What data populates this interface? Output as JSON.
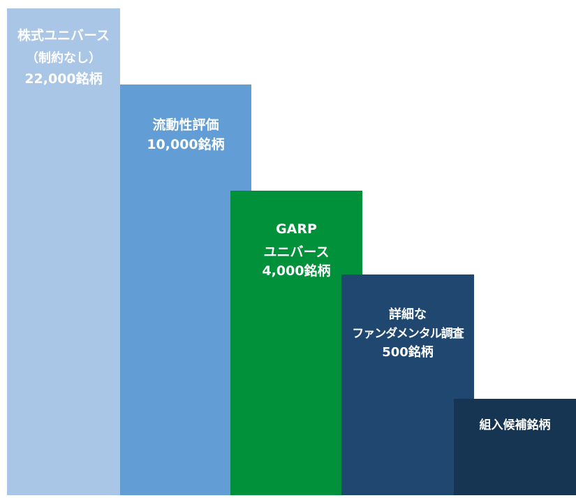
{
  "steps": [
    {
      "color": "#a9c6e6",
      "lines": [
        "株式ユニバース",
        "（制約なし）",
        "22,000銘柄"
      ]
    },
    {
      "color": "#639dd6",
      "lines": [
        "流動性評価",
        "10,000銘柄"
      ]
    },
    {
      "color": "#00913a",
      "lines": [
        "GARP",
        "ユニバース",
        "4,000銘柄"
      ]
    },
    {
      "color": "#1f4770",
      "lines": [
        "詳細な",
        "ファンダメンタル調査",
        "500銘柄"
      ]
    },
    {
      "color": "#163552",
      "lines": [
        "組入候補銘柄"
      ]
    }
  ]
}
